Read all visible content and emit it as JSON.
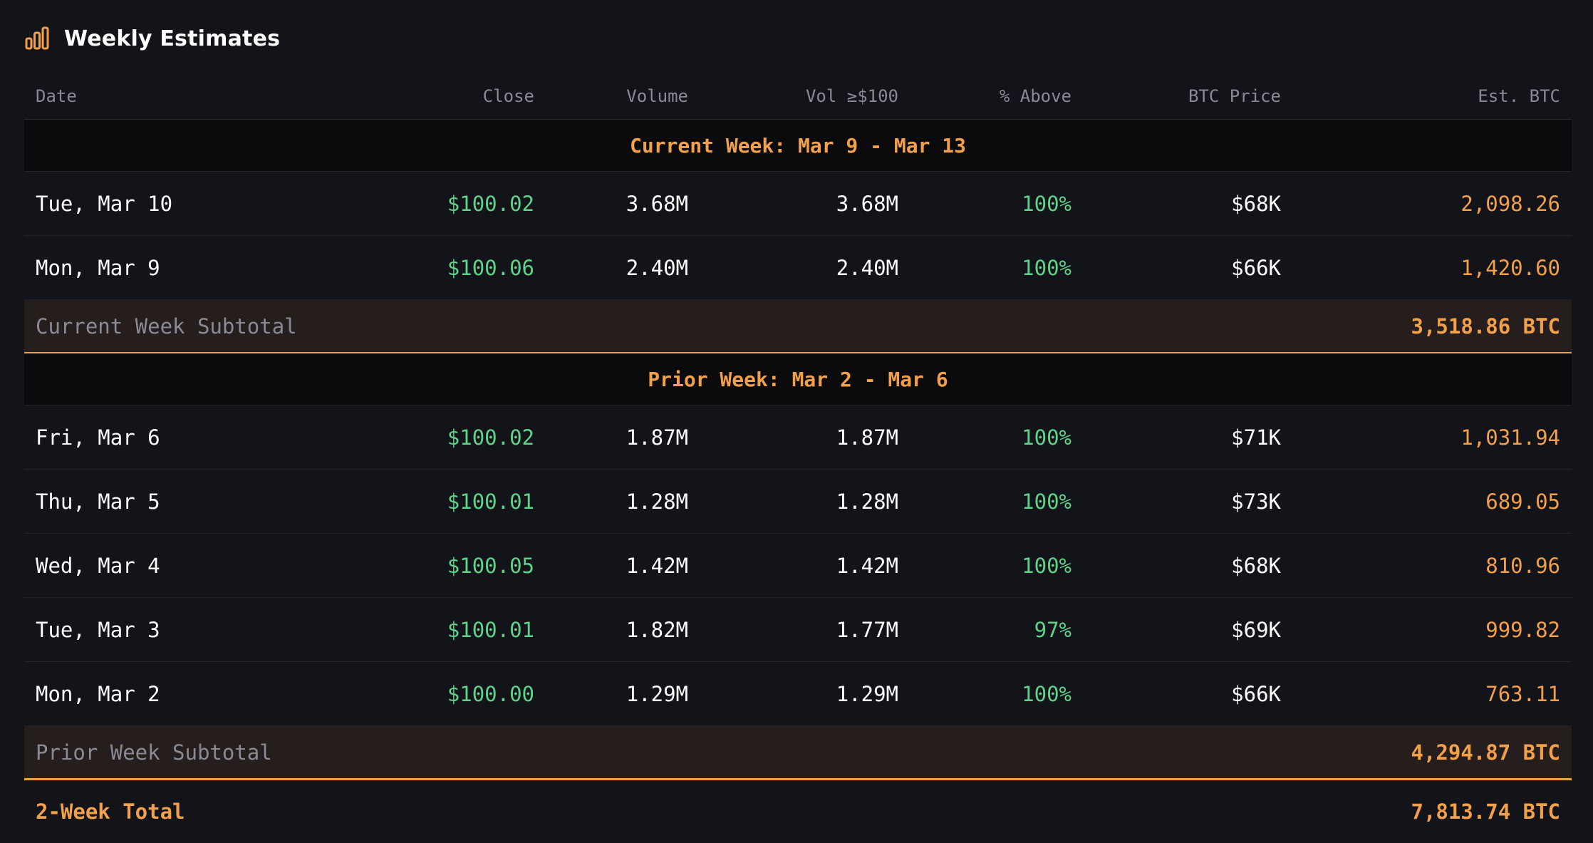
{
  "header": {
    "title": "Weekly Estimates",
    "icon": "bar-chart-icon",
    "accent": "#f3a04a"
  },
  "columns": [
    "Date",
    "Close",
    "Volume",
    "Vol ≥$100",
    "% Above",
    "BTC Price",
    "Est. BTC"
  ],
  "colors": {
    "positive": "#5fd38a",
    "accent": "#f3a04a",
    "muted": "#8a8a96"
  },
  "weeks": [
    {
      "label": "Current Week: Mar 9 - Mar 13",
      "rows": [
        {
          "date": "Tue, Mar 10",
          "close": "$100.02",
          "volume": "3.68M",
          "vol_above": "3.68M",
          "pct_above": "100%",
          "btc_price": "$68K",
          "est_btc": "2,098.26"
        },
        {
          "date": "Mon, Mar 9",
          "close": "$100.06",
          "volume": "2.40M",
          "vol_above": "2.40M",
          "pct_above": "100%",
          "btc_price": "$66K",
          "est_btc": "1,420.60"
        }
      ],
      "subtotal_label": "Current Week Subtotal",
      "subtotal_value": "3,518.86 BTC"
    },
    {
      "label": "Prior Week: Mar 2 - Mar 6",
      "rows": [
        {
          "date": "Fri, Mar 6",
          "close": "$100.02",
          "volume": "1.87M",
          "vol_above": "1.87M",
          "pct_above": "100%",
          "btc_price": "$71K",
          "est_btc": "1,031.94"
        },
        {
          "date": "Thu, Mar 5",
          "close": "$100.01",
          "volume": "1.28M",
          "vol_above": "1.28M",
          "pct_above": "100%",
          "btc_price": "$73K",
          "est_btc": "689.05"
        },
        {
          "date": "Wed, Mar 4",
          "close": "$100.05",
          "volume": "1.42M",
          "vol_above": "1.42M",
          "pct_above": "100%",
          "btc_price": "$68K",
          "est_btc": "810.96"
        },
        {
          "date": "Tue, Mar 3",
          "close": "$100.01",
          "volume": "1.82M",
          "vol_above": "1.77M",
          "pct_above": "97%",
          "btc_price": "$69K",
          "est_btc": "999.82"
        },
        {
          "date": "Mon, Mar 2",
          "close": "$100.00",
          "volume": "1.29M",
          "vol_above": "1.29M",
          "pct_above": "100%",
          "btc_price": "$66K",
          "est_btc": "763.11"
        }
      ],
      "subtotal_label": "Prior Week Subtotal",
      "subtotal_value": "4,294.87 BTC"
    }
  ],
  "total": {
    "label": "2-Week Total",
    "value": "7,813.74 BTC"
  }
}
